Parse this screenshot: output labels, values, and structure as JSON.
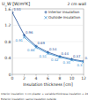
{
  "chart_data": {
    "type": "line",
    "title": "U_W [W/m²K]",
    "annotation": "2 cm wall",
    "x_label": "Insulation thickness [cm]",
    "x": [
      0,
      2,
      4,
      6,
      8,
      10,
      12
    ],
    "series": [
      {
        "name": "Interior insulation",
        "color": "#1f4e96",
        "marker": "plus",
        "line_style": "solid",
        "values": [
          1.51,
          0.96,
          0.69,
          0.54,
          0.44,
          0.37,
          0.32
        ]
      },
      {
        "name": "Outside insulation",
        "color": "#3a8fd0",
        "marker": "cross",
        "line_style": "solid",
        "values": [
          null,
          0.91,
          0.66,
          0.51,
          0.42,
          0.35,
          0.3
        ]
      }
    ],
    "xlim": [
      0,
      12
    ],
    "xticks": [
      0,
      2,
      4,
      6,
      8,
      10,
      12
    ],
    "ylim": [
      0,
      1.6
    ],
    "yticks": [
      0,
      0.4,
      0.8,
      1.2,
      1.6
    ],
    "data_labels": true,
    "legend": "upper right",
    "notes": [
      "Interior insulation: 1 cm plaster + variable-thickness insulation + 24 cm wall",
      "Exterior insulation: same insulation outside"
    ]
  }
}
